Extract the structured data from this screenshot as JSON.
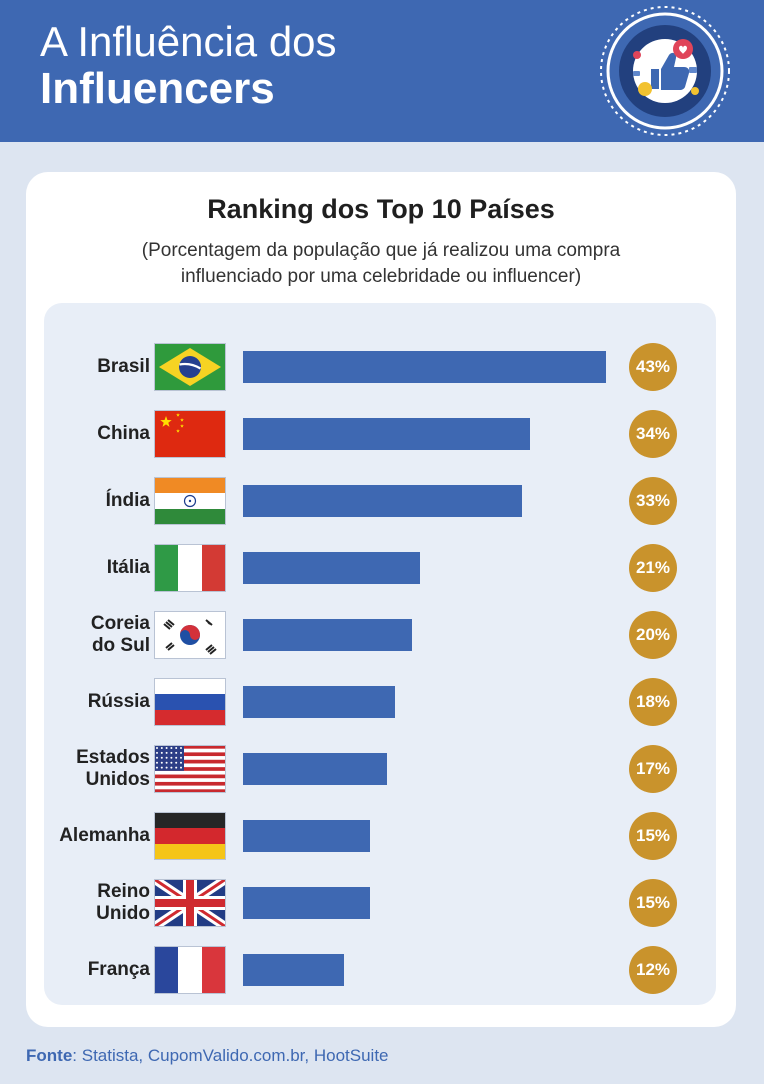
{
  "header": {
    "title_line1": "A Influência dos",
    "title_line2": "Influencers",
    "logo_icon": "thumbs-up-social-icon"
  },
  "colors": {
    "header_bg": "#3e68b2",
    "bar": "#3e68b2",
    "badge": "#c9932c",
    "page_bg": "#dde5f1"
  },
  "chart_data": {
    "type": "bar",
    "orientation": "horizontal",
    "title": "Ranking dos Top 10 Países",
    "subtitle_line1": "(Porcentagem da população que já realizou uma compra",
    "subtitle_line2": "influenciado por uma celebridade ou influencer)",
    "categories": [
      [
        "Brasil"
      ],
      [
        "China"
      ],
      [
        "Índia"
      ],
      [
        "Itália"
      ],
      [
        "Coreia",
        "do Sul"
      ],
      [
        "Rússia"
      ],
      [
        "Estados",
        "Unidos"
      ],
      [
        "Alemanha"
      ],
      [
        "Reino",
        "Unido"
      ],
      [
        "França"
      ]
    ],
    "flags": [
      "brazil",
      "china",
      "india",
      "italy",
      "south-korea",
      "russia",
      "usa",
      "germany",
      "uk",
      "france"
    ],
    "values": [
      43,
      34,
      33,
      21,
      20,
      18,
      17,
      15,
      15,
      12
    ],
    "labels": [
      "43%",
      "34%",
      "33%",
      "21%",
      "20%",
      "18%",
      "17%",
      "15%",
      "15%",
      "12%"
    ],
    "unit": "%",
    "xlim": [
      0,
      43
    ]
  },
  "source": {
    "label": "Fonte",
    "text": ": Statista, CupomValido.com.br, HootSuite"
  }
}
